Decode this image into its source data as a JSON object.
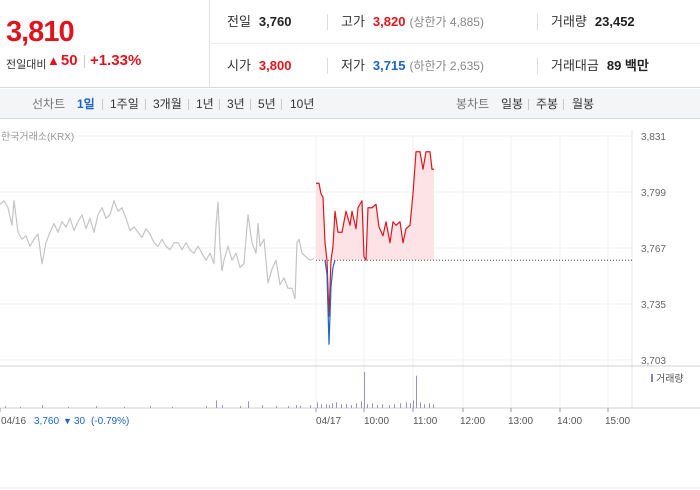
{
  "summary": {
    "price": "3,810",
    "change_label": "전일대비",
    "change_arrow": "▲",
    "change_abs": "50",
    "change_pct": "+1.33%",
    "up_color": "#e0141e",
    "down_color": "#1b64c8"
  },
  "stats": {
    "prev_close": {
      "label": "전일",
      "value": "3,760"
    },
    "high": {
      "label": "고가",
      "value": "3,820",
      "sub": "(상한가 4,885)"
    },
    "volume": {
      "label": "거래량",
      "value": "23,452"
    },
    "open": {
      "label": "시가",
      "value": "3,800"
    },
    "low": {
      "label": "저가",
      "value": "3,715",
      "sub": "(하한가 2,635)"
    },
    "amount": {
      "label": "거래대금",
      "value": "89 백만"
    }
  },
  "tabs": {
    "line_label": "선차트",
    "line_items": [
      "1일",
      "1주일",
      "3개월",
      "1년",
      "3년",
      "5년",
      "10년"
    ],
    "active_line": "1일",
    "candle_label": "봉차트",
    "candle_items": [
      "일봉",
      "주봉",
      "월봉"
    ]
  },
  "chart_data": {
    "type": "line",
    "source": "한국거래소(KRX)",
    "y_ticks": [
      "3,831",
      "3,799",
      "3,767",
      "3,735",
      "3,703"
    ],
    "ylim": [
      3703,
      3831
    ],
    "x_ticks": [
      "04/16",
      "04/17",
      "10:00",
      "11:00",
      "12:00",
      "13:00",
      "14:00",
      "15:00"
    ],
    "reference": 3760,
    "legend": "거래량",
    "prev_day_info": {
      "date": "04/16",
      "close": "3,760",
      "arrow": "▼",
      "change": "30",
      "pct": "(-0.79%)"
    },
    "series": [
      {
        "color": "#c4c4c4",
        "points": [
          [
            0,
            3792
          ],
          [
            4,
            3794
          ],
          [
            8,
            3790
          ],
          [
            12,
            3780
          ],
          [
            14,
            3794
          ],
          [
            18,
            3776
          ],
          [
            22,
            3772
          ],
          [
            26,
            3774
          ],
          [
            30,
            3768
          ],
          [
            34,
            3772
          ],
          [
            38,
            3775
          ],
          [
            42,
            3758
          ],
          [
            46,
            3770
          ],
          [
            50,
            3776
          ],
          [
            54,
            3781
          ],
          [
            58,
            3776
          ],
          [
            62,
            3782
          ],
          [
            66,
            3779
          ],
          [
            70,
            3784
          ],
          [
            74,
            3777
          ],
          [
            78,
            3782
          ],
          [
            82,
            3786
          ],
          [
            86,
            3778
          ],
          [
            90,
            3784
          ],
          [
            94,
            3776
          ],
          [
            98,
            3786
          ],
          [
            102,
            3790
          ],
          [
            106,
            3784
          ],
          [
            110,
            3786
          ],
          [
            114,
            3794
          ],
          [
            118,
            3788
          ],
          [
            122,
            3790
          ],
          [
            126,
            3784
          ],
          [
            130,
            3777
          ],
          [
            134,
            3779
          ],
          [
            138,
            3776
          ],
          [
            142,
            3773
          ],
          [
            146,
            3778
          ],
          [
            150,
            3775
          ],
          [
            154,
            3770
          ],
          [
            158,
            3768
          ],
          [
            162,
            3772
          ],
          [
            166,
            3768
          ],
          [
            170,
            3766
          ],
          [
            174,
            3770
          ],
          [
            178,
            3770
          ],
          [
            182,
            3766
          ],
          [
            186,
            3770
          ],
          [
            190,
            3766
          ],
          [
            194,
            3764
          ],
          [
            198,
            3768
          ],
          [
            202,
            3764
          ],
          [
            206,
            3760
          ],
          [
            210,
            3764
          ],
          [
            214,
            3758
          ],
          [
            216,
            3780
          ],
          [
            218,
            3793
          ],
          [
            220,
            3768
          ],
          [
            222,
            3754
          ],
          [
            224,
            3760
          ],
          [
            228,
            3768
          ],
          [
            232,
            3760
          ],
          [
            236,
            3764
          ],
          [
            240,
            3756
          ],
          [
            244,
            3758
          ],
          [
            248,
            3786
          ],
          [
            252,
            3770
          ],
          [
            256,
            3764
          ],
          [
            258,
            3781
          ],
          [
            260,
            3768
          ],
          [
            264,
            3772
          ],
          [
            268,
            3747
          ],
          [
            272,
            3755
          ],
          [
            276,
            3760
          ],
          [
            280,
            3746
          ],
          [
            284,
            3750
          ],
          [
            288,
            3744
          ],
          [
            292,
            3744
          ],
          [
            295,
            3738
          ],
          [
            297,
            3770
          ],
          [
            299,
            3772
          ],
          [
            302,
            3764
          ],
          [
            306,
            3762
          ],
          [
            310,
            3760
          ],
          [
            314,
            3761
          ]
        ]
      },
      {
        "color": "#e0141e",
        "points": [
          [
            316,
            3804
          ],
          [
            319,
            3804
          ],
          [
            321,
            3798
          ],
          [
            323,
            3796
          ],
          [
            325,
            3770
          ],
          [
            327,
            3760
          ],
          [
            329,
            3728
          ],
          [
            331,
            3760
          ],
          [
            333,
            3768
          ],
          [
            335,
            3788
          ],
          [
            338,
            3776
          ],
          [
            342,
            3776
          ],
          [
            346,
            3788
          ],
          [
            350,
            3780
          ],
          [
            352,
            3788
          ],
          [
            356,
            3778
          ],
          [
            358,
            3790
          ],
          [
            362,
            3794
          ],
          [
            364,
            3762
          ],
          [
            366,
            3760
          ],
          [
            368,
            3790
          ],
          [
            372,
            3790
          ],
          [
            376,
            3792
          ],
          [
            379,
            3779
          ],
          [
            383,
            3774
          ],
          [
            386,
            3782
          ],
          [
            390,
            3770
          ],
          [
            393,
            3782
          ],
          [
            396,
            3780
          ],
          [
            400,
            3782
          ],
          [
            403,
            3770
          ],
          [
            406,
            3778
          ],
          [
            410,
            3780
          ],
          [
            413,
            3798
          ],
          [
            416,
            3822
          ],
          [
            420,
            3822
          ],
          [
            423,
            3812
          ],
          [
            426,
            3822
          ],
          [
            430,
            3822
          ],
          [
            432,
            3812
          ],
          [
            434,
            3812
          ]
        ]
      },
      {
        "color": "#1b64c8",
        "points": [
          [
            325,
            3760
          ],
          [
            327,
            3752
          ],
          [
            329,
            3712
          ],
          [
            331,
            3745
          ],
          [
            333,
            3756
          ],
          [
            335,
            3760
          ]
        ]
      }
    ],
    "volume": {
      "ymax": 40,
      "bars": [
        [
          5,
          2
        ],
        [
          20,
          1
        ],
        [
          42,
          3
        ],
        [
          68,
          1
        ],
        [
          96,
          2
        ],
        [
          124,
          1
        ],
        [
          150,
          2
        ],
        [
          172,
          1
        ],
        [
          206,
          2
        ],
        [
          216,
          8
        ],
        [
          222,
          3
        ],
        [
          240,
          2
        ],
        [
          248,
          7
        ],
        [
          262,
          3
        ],
        [
          276,
          2
        ],
        [
          288,
          2
        ],
        [
          296,
          3
        ],
        [
          300,
          2
        ],
        [
          310,
          3
        ],
        [
          317,
          6
        ],
        [
          321,
          4
        ],
        [
          326,
          4
        ],
        [
          329,
          3
        ],
        [
          332,
          5
        ],
        [
          336,
          6
        ],
        [
          341,
          4
        ],
        [
          346,
          4
        ],
        [
          351,
          3
        ],
        [
          356,
          5
        ],
        [
          361,
          7
        ],
        [
          364,
          38
        ],
        [
          367,
          4
        ],
        [
          372,
          5
        ],
        [
          377,
          3
        ],
        [
          382,
          4
        ],
        [
          389,
          3
        ],
        [
          394,
          4
        ],
        [
          400,
          5
        ],
        [
          406,
          6
        ],
        [
          410,
          5
        ],
        [
          413,
          8
        ],
        [
          416,
          34
        ],
        [
          420,
          6
        ],
        [
          424,
          4
        ],
        [
          429,
          5
        ],
        [
          433,
          4
        ]
      ]
    }
  }
}
